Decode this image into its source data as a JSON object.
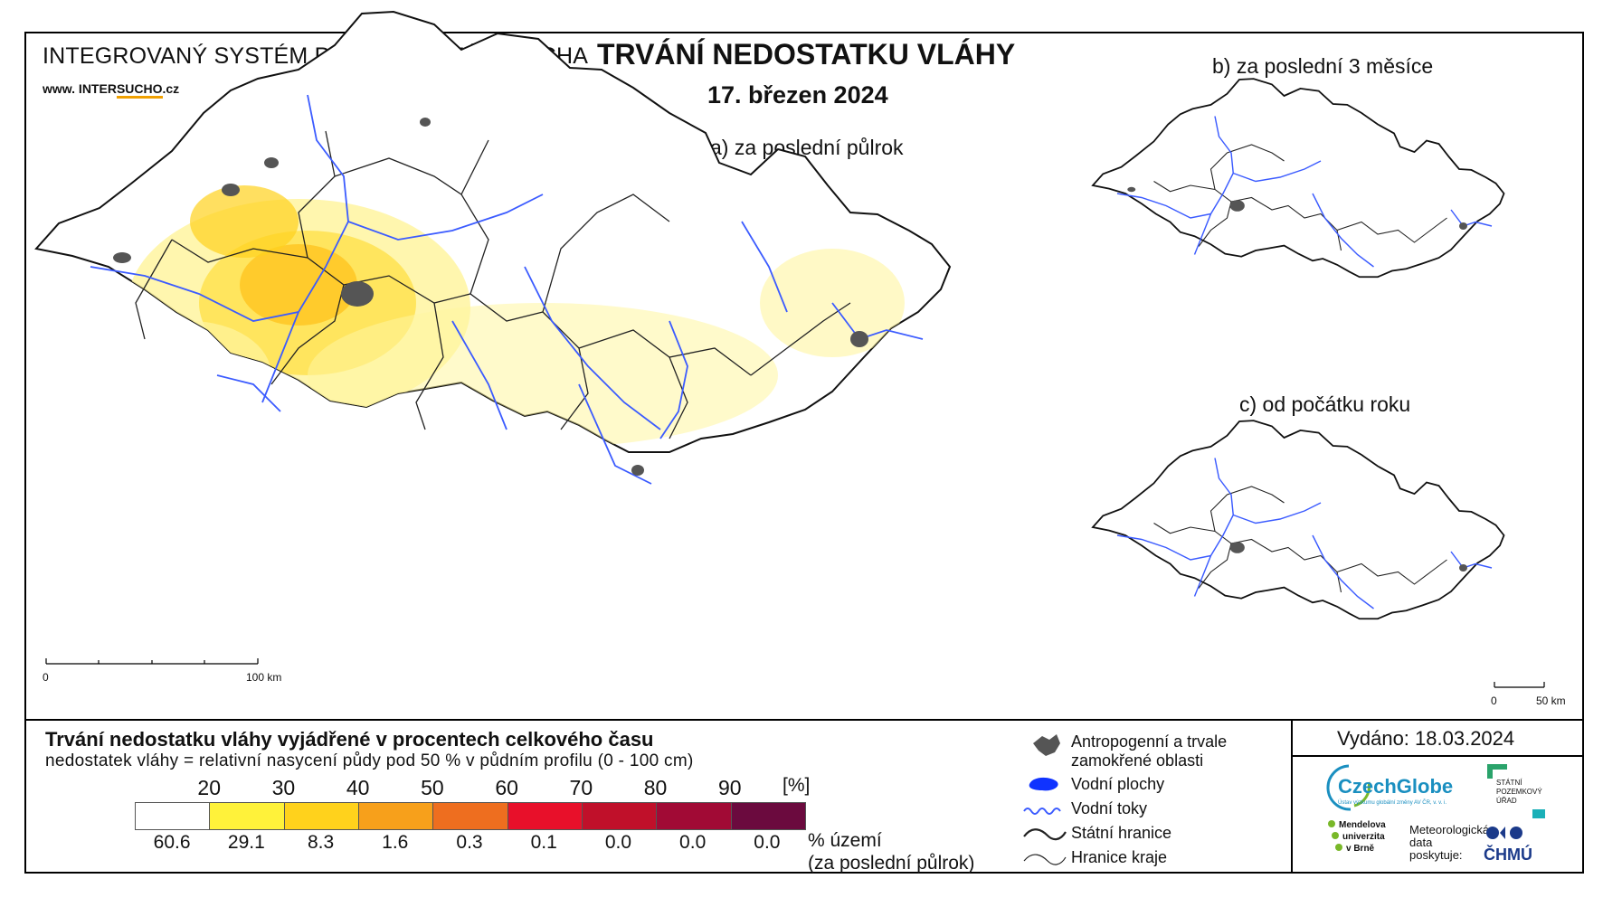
{
  "header": {
    "system_name": "INTEGROVANÝ SYSTÉM PRO SLEDOVÁNÍ SUCHA",
    "url_prefix": "www. INTER",
    "url_accent": "SUCHO",
    "url_suffix": ".cz",
    "title": "TRVÁNÍ NEDOSTATKU VLÁHY",
    "date": "17. březen 2024"
  },
  "maps": {
    "a_label": "a) za poslední půlrok",
    "b_label": "b) za poslední 3 měsíce",
    "c_label": "c) od počátku roku",
    "scale_main": {
      "zero": "0",
      "end": "100 km"
    },
    "scale_small": {
      "zero": "0",
      "end": "50 km"
    }
  },
  "legend": {
    "title": "Trvání nedostatku vláhy vyjádřené v procentech celkového času",
    "subtitle": "nedostatek vláhy = relativní nasycení půdy pod 50 % v půdním profilu (0 - 100 cm)",
    "unit": "[%]",
    "thresholds": [
      "20",
      "30",
      "40",
      "50",
      "60",
      "70",
      "80",
      "90"
    ],
    "colors": [
      "#ffffff",
      "#fff23a",
      "#ffd21c",
      "#f7a01b",
      "#ee6e1f",
      "#e8102a",
      "#c0102a",
      "#a10a35",
      "#6b0a3e"
    ],
    "territory_pct": [
      "60.6",
      "29.1",
      "8.3",
      "1.6",
      "0.3",
      "0.1",
      "0.0",
      "0.0",
      "0.0"
    ],
    "territory_label_1": "% území",
    "territory_label_2": "(za poslední půlrok)"
  },
  "symbology": {
    "urban": "Antropogenní a trvale zamokřené oblasti",
    "water_bodies": "Vodní plochy",
    "rivers": "Vodní toky",
    "state_border": "Státní hranice",
    "region_border": "Hranice kraje"
  },
  "footer": {
    "issued": "Vydáno: 18.03.2024",
    "czechglobe": "CzechGlobe",
    "czechglobe_sub": "Ústav výzkumu globální změny AV ČR, v. v. i.",
    "spu": "STÁTNÍ POZEMKOVÝ ÚŘAD",
    "mendel": [
      "Mendelova",
      "univerzita",
      "v Brně"
    ],
    "meteo": [
      "Meteorologická",
      "data",
      "poskytuje:"
    ],
    "chmu": "ČHMÚ"
  },
  "style_colors": {
    "river": "#3b5bff",
    "urban": "#555555",
    "border": "#222222"
  }
}
